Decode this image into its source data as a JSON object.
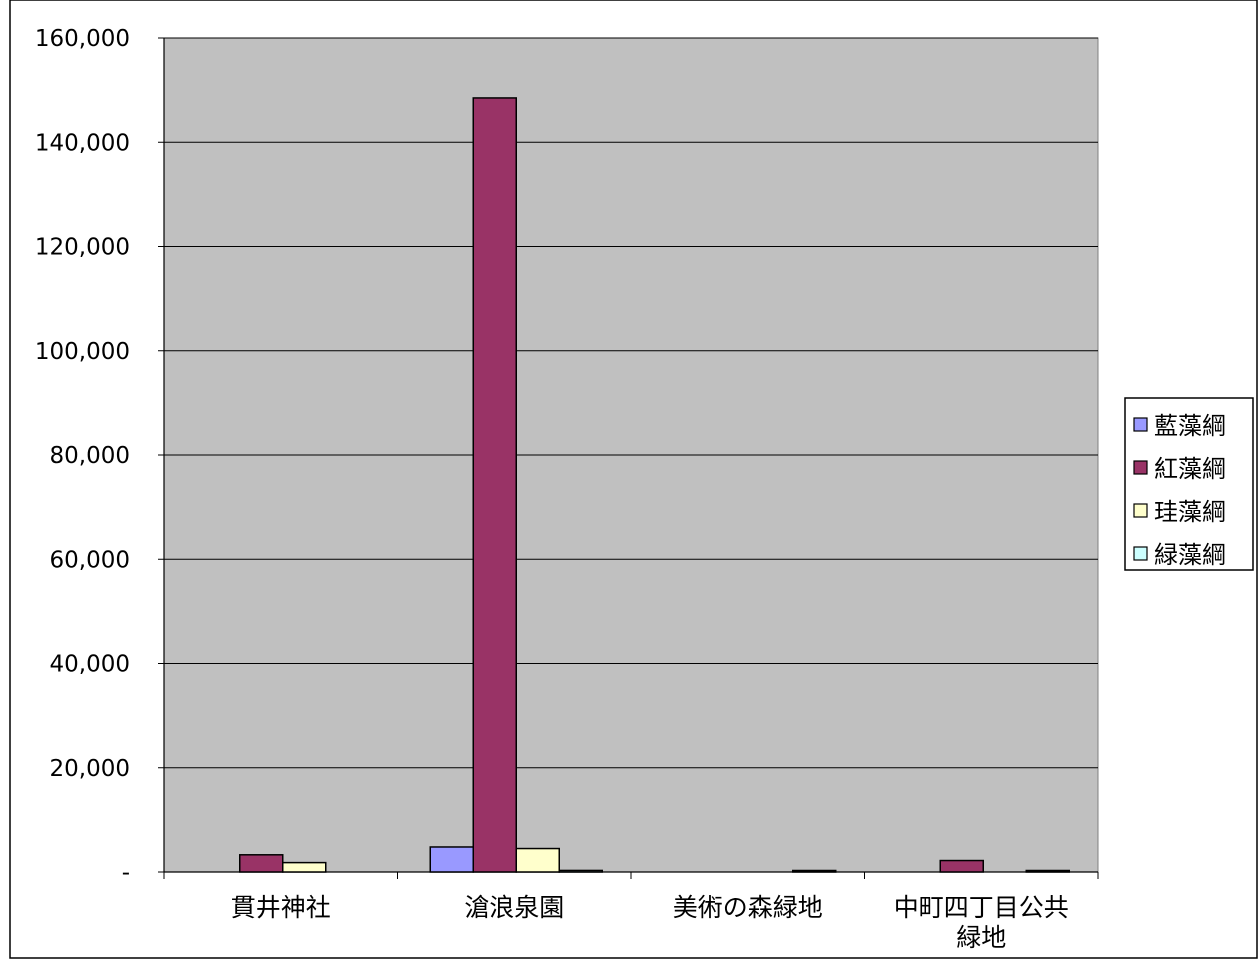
{
  "chart_data": {
    "type": "bar",
    "title": "",
    "xlabel": "",
    "ylabel": "",
    "categories": [
      "貫井神社",
      "滄浪泉園",
      "美術の森緑地",
      "中町四丁目公共\n緑地"
    ],
    "series": [
      {
        "name": "藍藻綱",
        "color": "#9999ff",
        "values": [
          0,
          4800,
          0,
          0
        ]
      },
      {
        "name": "紅藻綱",
        "color": "#993366",
        "values": [
          3300,
          148500,
          0,
          2200
        ]
      },
      {
        "name": "珪藻綱",
        "color": "#ffffcc",
        "values": [
          1800,
          4500,
          0,
          0
        ]
      },
      {
        "name": "緑藻綱",
        "color": "#ccffff",
        "values": [
          0,
          300,
          100,
          100
        ]
      }
    ],
    "ylim": [
      0,
      160000
    ],
    "yticks": [
      0,
      20000,
      40000,
      60000,
      80000,
      100000,
      120000,
      140000,
      160000
    ],
    "ytick_labels": [
      "-",
      "20,000",
      "40,000",
      "60,000",
      "80,000",
      "100,000",
      "120,000",
      "140,000",
      "160,000"
    ],
    "grid": true,
    "legend_position": "right",
    "plot_background": "#c0c0c0"
  }
}
